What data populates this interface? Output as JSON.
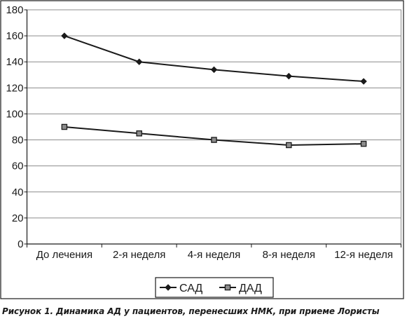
{
  "chart_data": {
    "type": "line",
    "categories": [
      "До лечения",
      "2-я неделя",
      "4-я неделя",
      "8-я неделя",
      "12-я неделя"
    ],
    "series": [
      {
        "name": "САД",
        "values": [
          160,
          140,
          134,
          129,
          125
        ],
        "marker": "diamond",
        "color": "#1a1a1a"
      },
      {
        "name": "ДАД",
        "values": [
          90,
          85,
          80,
          76,
          77
        ],
        "marker": "square",
        "color": "#1a1a1a",
        "marker_fill": "#8c8c8c"
      }
    ],
    "ylim": [
      0,
      180
    ],
    "yticks": [
      0,
      20,
      40,
      60,
      80,
      100,
      120,
      140,
      160,
      180
    ],
    "grid": "horizontal",
    "legend_position": "bottom"
  },
  "caption": "Рисунок 1. Динамика АД у пациентов, перенесших НМК, при приеме Лористы"
}
